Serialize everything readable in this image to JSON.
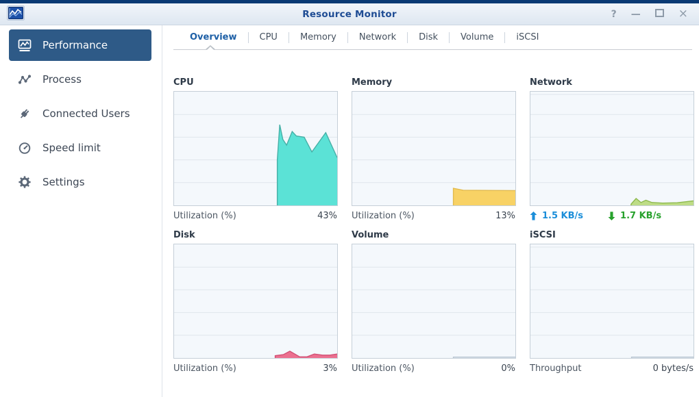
{
  "window": {
    "title": "Resource Monitor",
    "app_icon": "resource-monitor-icon",
    "controls": [
      {
        "name": "help",
        "glyph": "?"
      },
      {
        "name": "minimize",
        "glyph": "—"
      },
      {
        "name": "maximize",
        "glyph": ""
      },
      {
        "name": "close",
        "glyph": "×"
      }
    ]
  },
  "sidebar": {
    "active_item": "Performance",
    "active_bg": "#2e5a87",
    "items": [
      {
        "label": "Performance",
        "icon": "performance-chart-icon",
        "active": true
      },
      {
        "label": "Process",
        "icon": "process-graph-icon",
        "active": false
      },
      {
        "label": "Connected Users",
        "icon": "plug-icon",
        "active": false
      },
      {
        "label": "Speed limit",
        "icon": "speedometer-icon",
        "active": false
      },
      {
        "label": "Settings",
        "icon": "gear-icon",
        "active": false
      }
    ]
  },
  "tabs": {
    "active": "Overview",
    "items": [
      {
        "label": "Overview"
      },
      {
        "label": "CPU"
      },
      {
        "label": "Memory"
      },
      {
        "label": "Network"
      },
      {
        "label": "Disk"
      },
      {
        "label": "Volume"
      },
      {
        "label": "iSCSI"
      }
    ]
  },
  "colors": {
    "titlebar_strip": "#0a3a74",
    "title_text": "#1e4c94",
    "panel_bg": "#f4f8fc",
    "panel_border": "#c5cfd8",
    "panel_grid": "#dfe6ec",
    "upload_blue": "#1b8ed9",
    "download_green": "#27a12c"
  },
  "chart_data": [
    {
      "id": "cpu",
      "type": "area",
      "title": "CPU",
      "ylabel": "Utilization (%)",
      "ylim": [
        0,
        100
      ],
      "current_value": 43,
      "fill": "#5be2d6",
      "stroke": "#46afa6",
      "top_gridline": false,
      "points": [
        [
          0.633,
          0
        ],
        [
          0.633,
          40
        ],
        [
          0.648,
          71
        ],
        [
          0.667,
          58
        ],
        [
          0.69,
          53
        ],
        [
          0.724,
          65
        ],
        [
          0.75,
          61
        ],
        [
          0.798,
          60
        ],
        [
          0.845,
          47
        ],
        [
          0.93,
          64
        ],
        [
          1,
          42
        ],
        [
          1,
          0
        ]
      ],
      "footer": {
        "left_label": "Utilization (%)",
        "right_label": "43%"
      }
    },
    {
      "id": "memory",
      "type": "area",
      "title": "Memory",
      "ylabel": "Utilization (%)",
      "ylim": [
        0,
        100
      ],
      "current_value": 13,
      "fill": "#f8d265",
      "stroke": "#e2ba4e",
      "top_gridline": false,
      "points": [
        [
          0.62,
          0
        ],
        [
          0.62,
          15
        ],
        [
          0.68,
          13.3
        ],
        [
          1,
          13
        ],
        [
          1,
          0
        ]
      ],
      "footer": {
        "left_label": "Utilization (%)",
        "right_label": "13%"
      }
    },
    {
      "id": "network",
      "type": "area",
      "title": "Network",
      "ylabel": "KB/s",
      "ylim": null,
      "upload": "1.5 KB/s",
      "download": "1.7 KB/s",
      "fill": "#bedc86",
      "stroke": "#8db94c",
      "top_gridline": true,
      "points": [
        [
          0.617,
          0
        ],
        [
          0.617,
          1
        ],
        [
          0.648,
          6
        ],
        [
          0.678,
          2.5
        ],
        [
          0.708,
          4.5
        ],
        [
          0.745,
          2.5
        ],
        [
          0.81,
          2
        ],
        [
          0.9,
          2.3
        ],
        [
          1,
          4
        ],
        [
          1,
          0
        ]
      ],
      "footer": {
        "left_label": "1.5 KB/s",
        "left_arrow": "up",
        "left_color": "#1b8ed9",
        "right_label": "1.7 KB/s",
        "right_arrow": "down",
        "right_color": "#27a12c"
      }
    },
    {
      "id": "disk",
      "type": "area",
      "title": "Disk",
      "ylabel": "Utilization (%)",
      "ylim": [
        0,
        100
      ],
      "current_value": 3,
      "fill": "#ec7090",
      "stroke": "#d05074",
      "top_gridline": false,
      "points": [
        [
          0.62,
          0
        ],
        [
          0.62,
          2
        ],
        [
          0.67,
          3
        ],
        [
          0.71,
          6
        ],
        [
          0.77,
          1
        ],
        [
          0.815,
          1
        ],
        [
          0.86,
          3.5
        ],
        [
          0.91,
          2.5
        ],
        [
          0.955,
          2.5
        ],
        [
          1,
          3.5
        ],
        [
          1,
          0
        ]
      ],
      "footer": {
        "left_label": "Utilization (%)",
        "right_label": "3%"
      }
    },
    {
      "id": "volume",
      "type": "area",
      "title": "Volume",
      "ylabel": "Utilization (%)",
      "ylim": [
        0,
        100
      ],
      "current_value": 0,
      "fill": "#e3eaf1",
      "stroke": "#b9c5d1",
      "top_gridline": false,
      "points": [
        [
          0.62,
          0
        ],
        [
          0.62,
          0.8
        ],
        [
          1,
          0.8
        ],
        [
          1,
          0
        ]
      ],
      "footer": {
        "left_label": "Utilization (%)",
        "right_label": "0%"
      }
    },
    {
      "id": "iscsi",
      "type": "area",
      "title": "iSCSI",
      "ylabel": "Throughput",
      "ylim": null,
      "current_value": "0 bytes/s",
      "fill": "#e3eaf1",
      "stroke": "#b9c5d1",
      "top_gridline": true,
      "points": [
        [
          0.62,
          0
        ],
        [
          0.62,
          0.8
        ],
        [
          1,
          0.8
        ],
        [
          1,
          0
        ]
      ],
      "footer": {
        "left_label": "Throughput",
        "right_label": "0 bytes/s"
      }
    }
  ]
}
